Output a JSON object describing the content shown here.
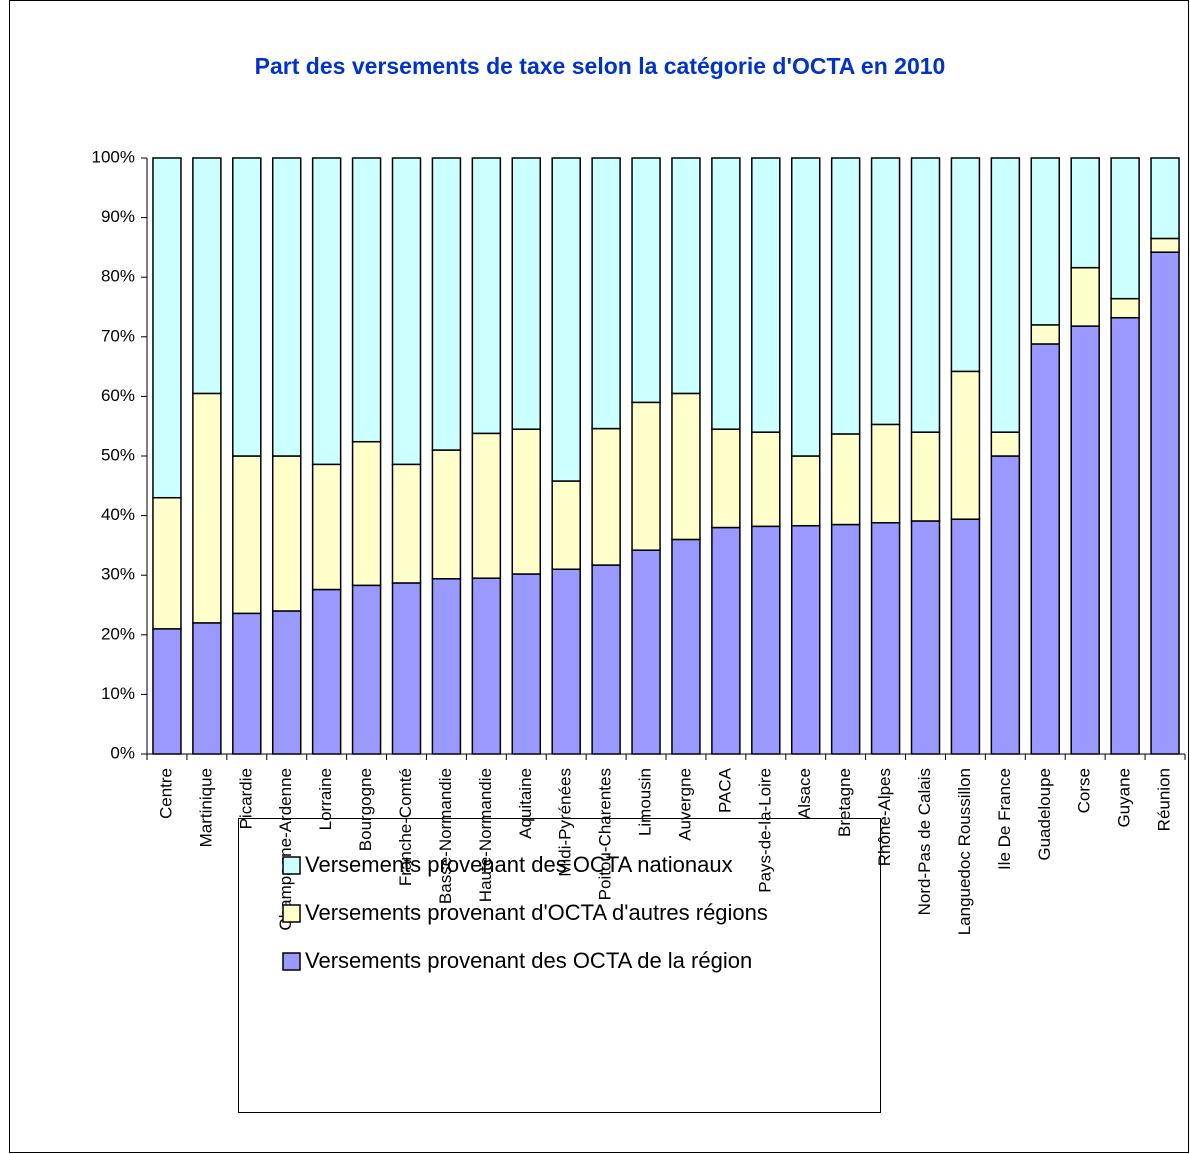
{
  "chart_data": {
    "type": "stacked_bar",
    "title": "Part des versements de taxe selon la catégorie d'OCTA en 2010",
    "categories": [
      "Centre",
      "Martinique",
      "Picardie",
      "Champagne-Ardenne",
      "Lorraine",
      "Bourgogne",
      "Franche-Comté",
      "Basse-Normandie",
      "Haute-Normandie",
      "Aquitaine",
      "Midi-Pyrénées",
      "Poitou-Charentes",
      "Limousin",
      "Auvergne",
      "PACA",
      "Pays-de-la-Loire",
      "Alsace",
      "Bretagne",
      "Rhône-Alpes",
      "Nord-Pas de Calais",
      "Languedoc Roussillon",
      "Ile De France",
      "Guadeloupe",
      "Corse",
      "Guyane",
      "Réunion"
    ],
    "series": [
      {
        "name": "Versements provenant des OCTA de la région",
        "color": "#9999ff",
        "values": [
          21,
          22,
          23.6,
          24,
          27.6,
          28.3,
          28.7,
          29.4,
          29.5,
          30.2,
          31,
          31.7,
          34.2,
          36,
          38,
          38.2,
          38.3,
          38.5,
          38.8,
          39.1,
          39.4,
          50,
          68.8,
          71.8,
          73.2,
          84.2
        ]
      },
      {
        "name": "Versements provenant d'OCTA d'autres régions",
        "color": "#ffffcc",
        "values": [
          22,
          38.5,
          26.4,
          26,
          21,
          24.1,
          19.9,
          21.6,
          24.3,
          24.3,
          14.8,
          22.9,
          24.8,
          24.5,
          16.5,
          15.8,
          11.7,
          15.2,
          16.5,
          14.9,
          24.8,
          4,
          3.2,
          9.8,
          3.2,
          2.3
        ]
      },
      {
        "name": "Versements provenant des OCTA nationaux",
        "color": "#ccffff",
        "values": [
          57,
          39.5,
          50,
          50,
          51.4,
          47.6,
          51.4,
          49,
          46.2,
          45.5,
          54.2,
          45.4,
          41,
          39.5,
          45.5,
          46,
          50,
          46.3,
          44.7,
          46,
          35.8,
          46,
          28,
          18.4,
          23.6,
          13.5
        ]
      }
    ],
    "ylim": [
      0,
      100
    ],
    "yticks": [
      {
        "value": 0,
        "label": "0%"
      },
      {
        "value": 10,
        "label": "10%"
      },
      {
        "value": 20,
        "label": "20%"
      },
      {
        "value": 30,
        "label": "30%"
      },
      {
        "value": 40,
        "label": "40%"
      },
      {
        "value": 50,
        "label": "50%"
      },
      {
        "value": 60,
        "label": "60%"
      },
      {
        "value": 70,
        "label": "70%"
      },
      {
        "value": 80,
        "label": "80%"
      },
      {
        "value": 90,
        "label": "90%"
      },
      {
        "value": 100,
        "label": "100%"
      }
    ],
    "grid": false
  }
}
